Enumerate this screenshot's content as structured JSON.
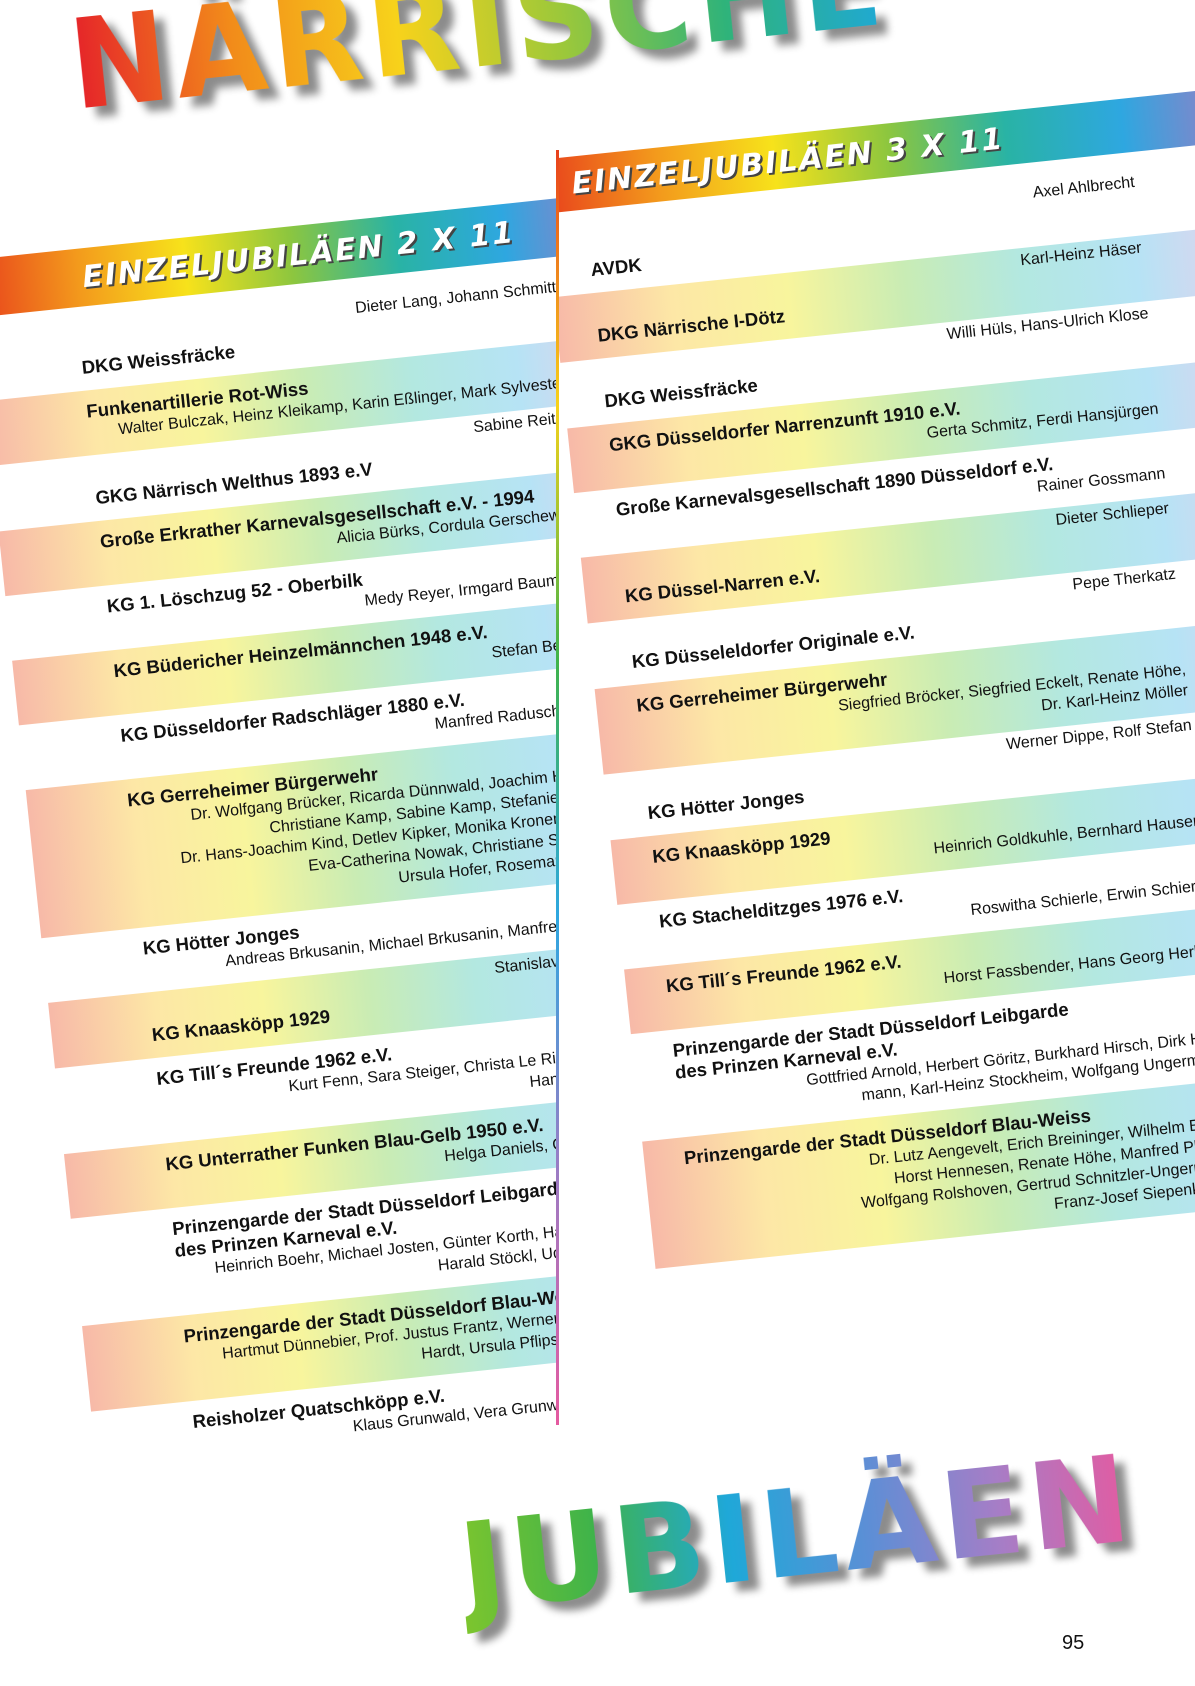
{
  "title_top": "NÄRRISCHE",
  "title_bottom": "JUBILÄEN",
  "page_number": "95",
  "columns": [
    {
      "header": "EINZELJUBILÄEN 2 X 11",
      "entries": [
        {
          "org": [
            "DKG Weissfräcke"
          ],
          "persons": [
            "Dieter Lang, Johann Schmitt"
          ],
          "inline": true,
          "band": false
        },
        {
          "org": [
            "Funkenartillerie Rot-Wiss"
          ],
          "persons": [
            "Walter Bulczak, Heinz Kleikamp, Karin Eßlinger, Mark Sylvester"
          ],
          "inline": false,
          "band": true
        },
        {
          "org": [
            "GKG Närrisch Welthus 1893 e.V"
          ],
          "persons": [
            "Sabine Reiter"
          ],
          "inline": true,
          "band": false
        },
        {
          "org": [
            "Große Erkrather Karnevalsgesellschaft e.V. - 1994"
          ],
          "persons": [
            "Alicia Bürks, Cordula Gerschewski"
          ],
          "inline": false,
          "band": true
        },
        {
          "org": [
            "KG 1. Löschzug 52 - Oberbilk"
          ],
          "persons": [
            "Medy Reyer, Irmgard Baumgart"
          ],
          "inline": false,
          "band": false
        },
        {
          "org": [
            "KG Büdericher Heinzelmännchen 1948 e.V."
          ],
          "persons": [
            "Stefan Bender"
          ],
          "inline": false,
          "band": true
        },
        {
          "org": [
            "KG Düsseldorfer Radschläger 1880 e.V."
          ],
          "persons": [
            "Manfred Raduschewski"
          ],
          "inline": false,
          "band": false
        },
        {
          "org": [
            "KG Gerreheimer Bürgerwehr"
          ],
          "persons": [
            "Dr. Wolfgang Brücker, Ricarda Dünnwald, Joachim Hunold,",
            "Christiane Kamp, Sabine Kamp, Stefanie Kamp,",
            "Dr. Hans-Joachim Kind, Detlev Kipker, Monika Kronenberger,",
            "Eva-Catherina Nowak, Christiane Schmalz,",
            "Ursula Hofer, Rosemarie Theis"
          ],
          "inline": false,
          "band": true
        },
        {
          "org": [
            "KG Hötter Jonges"
          ],
          "persons": [
            "Andreas Brkusanin, Michael Brkusanin, Manfred Höhner"
          ],
          "inline": false,
          "band": false
        },
        {
          "org": [
            "KG Knaasköpp 1929"
          ],
          "persons": [
            "Stanislav Brmesch"
          ],
          "inline": true,
          "band": true
        },
        {
          "org": [
            "KG Till´s Freunde 1962 e.V."
          ],
          "persons": [
            "Kurt Fenn, Sara Steiger, Christa Le Riche-Brecel,",
            "Hans Wittmann"
          ],
          "inline": false,
          "band": false
        },
        {
          "org": [
            "KG Unterrather Funken Blau-Gelb 1950 e.V."
          ],
          "persons": [
            "Helga Daniels, Otto Spindler"
          ],
          "inline": false,
          "band": true
        },
        {
          "org": [
            "Prinzengarde der Stadt Düsseldorf Leibgarde",
            "des Prinzen Karneval e.V."
          ],
          "persons": [
            "Heinrich Boehr, Michael Josten, Günter Korth, Hans Scholzen,",
            "Harald Stöckl, Udo van Bebber"
          ],
          "inline": false,
          "band": false
        },
        {
          "org": [
            "Prinzengarde der Stadt Düsseldorf Blau-Weiss"
          ],
          "persons": [
            "Hartmut Dünnebier, Prof. Justus Frantz, Werner K.Greb, Heinz",
            "Hardt, Ursula Pflips, Hans Trausch"
          ],
          "inline": false,
          "band": true
        },
        {
          "org": [
            "Reisholzer Quatschköpp e.V."
          ],
          "persons": [
            "Klaus Grunwald, Vera Grunwald, Horst Habig"
          ],
          "inline": false,
          "band": false
        }
      ]
    },
    {
      "header": "EINZELJUBILÄEN 3 X 11",
      "entries": [
        {
          "org": [
            "AVDK"
          ],
          "persons": [
            "Axel Ahlbrecht"
          ],
          "inline": true,
          "band": false
        },
        {
          "org": [
            "DKG Närrische I-Dötz"
          ],
          "persons": [
            "Karl-Heinz Häser"
          ],
          "inline": true,
          "band": true
        },
        {
          "org": [
            "DKG Weissfräcke"
          ],
          "persons": [
            "Willi Hüls, Hans-Ulrich Klose"
          ],
          "inline": true,
          "band": false
        },
        {
          "org": [
            "GKG Düsseldorfer Narrenzunft 1910 e.V."
          ],
          "persons": [
            "Gerta Schmitz, Ferdi Hansjürgen"
          ],
          "inline": false,
          "band": true
        },
        {
          "org": [
            "Große Karnevalsgesellschaft 1890 Düsseldorf e.V."
          ],
          "persons": [
            "Rainer Gossmann"
          ],
          "inline": false,
          "band": false
        },
        {
          "org": [
            "KG Düssel-Narren e.V."
          ],
          "persons": [
            "Dieter Schlieper"
          ],
          "inline": true,
          "band": true
        },
        {
          "org": [
            "KG Düsseleldorfer Originale e.V."
          ],
          "persons": [
            "Pepe Therkatz"
          ],
          "inline": true,
          "band": false
        },
        {
          "org": [
            "KG Gerreheimer Bürgerwehr"
          ],
          "persons": [
            "Siegfried Bröcker, Siegfried Eckelt, Renate Höhe,",
            "Dr. Karl-Heinz Möller"
          ],
          "inline": false,
          "band": true
        },
        {
          "org": [
            "KG Hötter Jonges"
          ],
          "persons": [
            "Werner Dippe, Rolf Stefan"
          ],
          "inline": true,
          "band": false
        },
        {
          "org": [
            "KG Knaasköpp 1929"
          ],
          "persons": [
            "Heinrich Goldkuhle, Bernhard Hausen"
          ],
          "inline": false,
          "band": true
        },
        {
          "org": [
            "KG Stachelditzges 1976 e.V."
          ],
          "persons": [
            "Roswitha Schierle, Erwin Schierle"
          ],
          "inline": false,
          "band": false
        },
        {
          "org": [
            "KG Till´s Freunde 1962 e.V."
          ],
          "persons": [
            "Horst Fassbender, Hans Georg Herbst"
          ],
          "inline": false,
          "band": true
        },
        {
          "org": [
            "Prinzengarde der Stadt Düsseldorf Leibgarde",
            "des Prinzen Karneval e.V."
          ],
          "persons": [
            "Gottfried Arnold, Herbert Göritz, Burkhard Hirsch, Dirk Hoff-",
            "mann, Karl-Heinz Stockheim, Wolfgang Ungermann"
          ],
          "inline": false,
          "band": false
        },
        {
          "org": [
            "Prinzengarde der Stadt Düsseldorf Blau-Weiss"
          ],
          "persons": [
            "Dr. Lutz Aengevelt, Erich Breininger, Wilhelm Esser,",
            "Horst Hennesen, Renate Höhe, Manfred Philipp,",
            "Wolfgang Rolshoven, Gertrud Schnitzler-Ungermann,",
            "Franz-Josef Siepenkothen"
          ],
          "inline": false,
          "band": true
        }
      ]
    }
  ]
}
